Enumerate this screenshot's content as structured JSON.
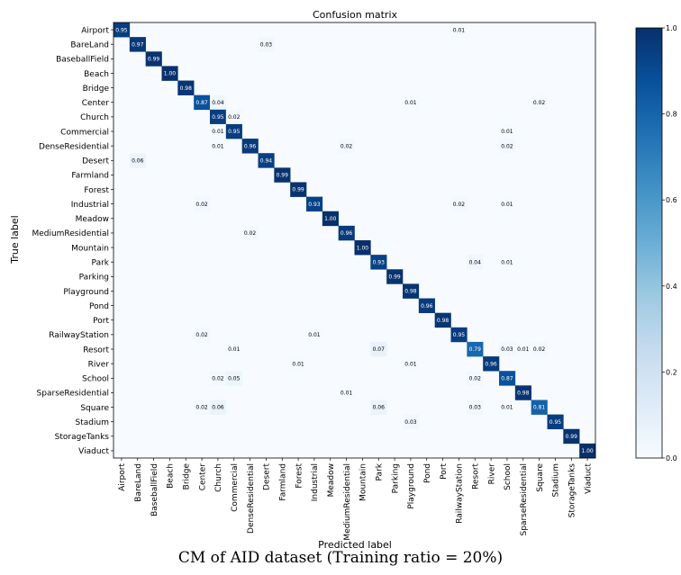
{
  "chart_data": {
    "type": "heatmap",
    "title": "Confusion matrix",
    "xlabel": "Predicted label",
    "ylabel": "True label",
    "categories": [
      "Airport",
      "BareLand",
      "BaseballField",
      "Beach",
      "Bridge",
      "Center",
      "Church",
      "Commercial",
      "DenseResidential",
      "Desert",
      "Farmland",
      "Forest",
      "Industrial",
      "Meadow",
      "MediumResidential",
      "Mountain",
      "Park",
      "Parking",
      "Playground",
      "Pond",
      "Port",
      "RailwayStation",
      "Resort",
      "River",
      "School",
      "SparseResidential",
      "Square",
      "Stadium",
      "StorageTanks",
      "Viaduct"
    ],
    "cells": [
      [
        0,
        0,
        0.95
      ],
      [
        0,
        21,
        0.01
      ],
      [
        1,
        1,
        0.97
      ],
      [
        1,
        9,
        0.03
      ],
      [
        2,
        2,
        0.99
      ],
      [
        3,
        3,
        1.0
      ],
      [
        4,
        4,
        0.98
      ],
      [
        5,
        5,
        0.87
      ],
      [
        5,
        6,
        0.04
      ],
      [
        5,
        18,
        0.01
      ],
      [
        5,
        26,
        0.02
      ],
      [
        6,
        6,
        0.95
      ],
      [
        6,
        7,
        0.02
      ],
      [
        7,
        6,
        0.01
      ],
      [
        7,
        7,
        0.95
      ],
      [
        7,
        24,
        0.01
      ],
      [
        8,
        6,
        0.01
      ],
      [
        8,
        8,
        0.96
      ],
      [
        8,
        14,
        0.02
      ],
      [
        8,
        24,
        0.02
      ],
      [
        9,
        1,
        0.06
      ],
      [
        9,
        9,
        0.94
      ],
      [
        10,
        10,
        0.99
      ],
      [
        11,
        11,
        0.99
      ],
      [
        12,
        5,
        0.02
      ],
      [
        12,
        12,
        0.93
      ],
      [
        12,
        21,
        0.02
      ],
      [
        12,
        24,
        0.01
      ],
      [
        13,
        13,
        1.0
      ],
      [
        14,
        8,
        0.02
      ],
      [
        14,
        14,
        0.96
      ],
      [
        15,
        15,
        1.0
      ],
      [
        16,
        16,
        0.93
      ],
      [
        16,
        22,
        0.04
      ],
      [
        16,
        24,
        0.01
      ],
      [
        17,
        17,
        0.99
      ],
      [
        18,
        18,
        0.98
      ],
      [
        19,
        19,
        0.96
      ],
      [
        20,
        20,
        0.98
      ],
      [
        21,
        5,
        0.02
      ],
      [
        21,
        12,
        0.01
      ],
      [
        21,
        21,
        0.95
      ],
      [
        22,
        7,
        0.01
      ],
      [
        22,
        16,
        0.07
      ],
      [
        22,
        22,
        0.79
      ],
      [
        22,
        24,
        0.03
      ],
      [
        22,
        25,
        0.01
      ],
      [
        22,
        26,
        0.02
      ],
      [
        23,
        11,
        0.01
      ],
      [
        23,
        18,
        0.01
      ],
      [
        23,
        23,
        0.96
      ],
      [
        24,
        6,
        0.02
      ],
      [
        24,
        7,
        0.05
      ],
      [
        24,
        22,
        0.02
      ],
      [
        24,
        24,
        0.87
      ],
      [
        25,
        14,
        0.01
      ],
      [
        25,
        25,
        0.98
      ],
      [
        26,
        5,
        0.02
      ],
      [
        26,
        6,
        0.06
      ],
      [
        26,
        16,
        0.06
      ],
      [
        26,
        22,
        0.03
      ],
      [
        26,
        24,
        0.01
      ],
      [
        26,
        26,
        0.81
      ],
      [
        27,
        18,
        0.03
      ],
      [
        27,
        27,
        0.95
      ],
      [
        28,
        28,
        0.99
      ],
      [
        29,
        29,
        1.0
      ]
    ],
    "colorbar": {
      "range": [
        0.0,
        1.0
      ],
      "ticks": [
        "0.0",
        "0.2",
        "0.4",
        "0.6",
        "0.8",
        "1.0"
      ],
      "colormap": "Blues"
    },
    "grid": false
  },
  "caption": "CM of AID dataset (Training ratio = 20%)"
}
